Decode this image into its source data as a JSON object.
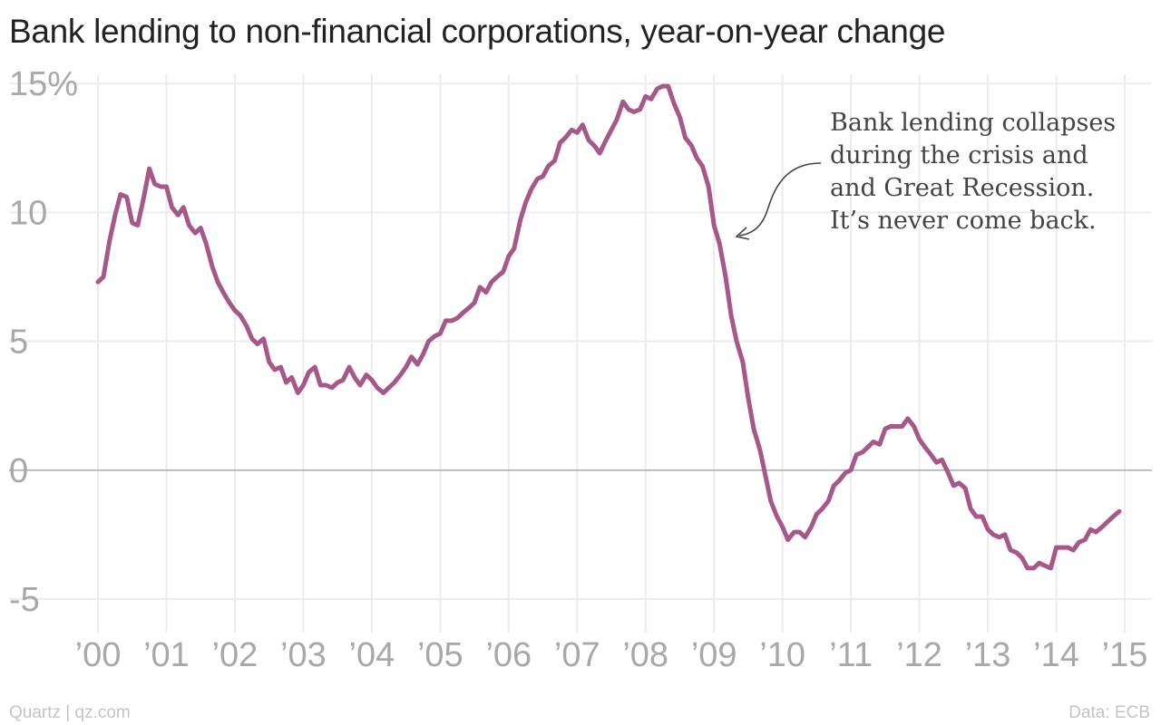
{
  "title": "Bank lending to non-financial corporations, year-on-year change",
  "footer": {
    "source_left": "Quartz | qz.com",
    "source_right": "Data: ECB"
  },
  "colors": {
    "line": "#A7588A",
    "grid": "#ececec",
    "zero_line": "#aaaaaa",
    "tick_text": "#a8a8a8"
  },
  "chart_data": {
    "type": "line",
    "title": "Bank lending to non-financial corporations, year-on-year change",
    "xlabel": "",
    "ylabel": "",
    "xlim": [
      2000,
      2015
    ],
    "ylim": [
      -6.3,
      15.5
    ],
    "yticks": [
      {
        "value": -5,
        "label": "-5"
      },
      {
        "value": 0,
        "label": "0"
      },
      {
        "value": 5,
        "label": "5"
      },
      {
        "value": 10,
        "label": "10"
      },
      {
        "value": 15,
        "label": "15%"
      }
    ],
    "xticks": [
      {
        "value": 2000,
        "label": "'00"
      },
      {
        "value": 2001,
        "label": "'01"
      },
      {
        "value": 2002,
        "label": "'02"
      },
      {
        "value": 2003,
        "label": "'03"
      },
      {
        "value": 2004,
        "label": "'04"
      },
      {
        "value": 2005,
        "label": "'05"
      },
      {
        "value": 2006,
        "label": "'06"
      },
      {
        "value": 2007,
        "label": "'07"
      },
      {
        "value": 2008,
        "label": "'08"
      },
      {
        "value": 2009,
        "label": "'09"
      },
      {
        "value": 2010,
        "label": "'10"
      },
      {
        "value": 2011,
        "label": "'11"
      },
      {
        "value": 2012,
        "label": "'12"
      },
      {
        "value": 2013,
        "label": "'13"
      },
      {
        "value": 2014,
        "label": "'14"
      },
      {
        "value": 2015,
        "label": "'15"
      }
    ],
    "grid": true,
    "annotation": {
      "lines": [
        "Bank lending collapses",
        "during the crisis and",
        "and Great Recession.",
        "It’s never come back."
      ],
      "points_to": {
        "x": 2009.2,
        "y": 9.5
      }
    },
    "series": [
      {
        "values": [
          [
            2000.0,
            7.3
          ],
          [
            2000.08,
            7.5
          ],
          [
            2000.17,
            8.9
          ],
          [
            2000.25,
            9.9
          ],
          [
            2000.33,
            10.7
          ],
          [
            2000.42,
            10.6
          ],
          [
            2000.5,
            9.6
          ],
          [
            2000.58,
            9.5
          ],
          [
            2000.67,
            10.6
          ],
          [
            2000.75,
            11.7
          ],
          [
            2000.83,
            11.1
          ],
          [
            2000.92,
            11.0
          ],
          [
            2001.0,
            11.0
          ],
          [
            2001.08,
            10.2
          ],
          [
            2001.17,
            9.9
          ],
          [
            2001.25,
            10.2
          ],
          [
            2001.33,
            9.5
          ],
          [
            2001.42,
            9.2
          ],
          [
            2001.5,
            9.4
          ],
          [
            2001.58,
            8.8
          ],
          [
            2001.67,
            7.9
          ],
          [
            2001.75,
            7.3
          ],
          [
            2001.83,
            6.9
          ],
          [
            2001.92,
            6.5
          ],
          [
            2002.0,
            6.2
          ],
          [
            2002.08,
            6.0
          ],
          [
            2002.17,
            5.6
          ],
          [
            2002.25,
            5.1
          ],
          [
            2002.33,
            4.9
          ],
          [
            2002.42,
            5.1
          ],
          [
            2002.5,
            4.2
          ],
          [
            2002.58,
            3.9
          ],
          [
            2002.67,
            4.0
          ],
          [
            2002.75,
            3.4
          ],
          [
            2002.83,
            3.6
          ],
          [
            2002.92,
            3.0
          ],
          [
            2003.0,
            3.3
          ],
          [
            2003.08,
            3.8
          ],
          [
            2003.17,
            4.0
          ],
          [
            2003.25,
            3.3
          ],
          [
            2003.33,
            3.3
          ],
          [
            2003.42,
            3.2
          ],
          [
            2003.5,
            3.4
          ],
          [
            2003.58,
            3.5
          ],
          [
            2003.67,
            4.0
          ],
          [
            2003.75,
            3.6
          ],
          [
            2003.83,
            3.3
          ],
          [
            2003.92,
            3.7
          ],
          [
            2004.0,
            3.5
          ],
          [
            2004.08,
            3.2
          ],
          [
            2004.17,
            3.0
          ],
          [
            2004.25,
            3.2
          ],
          [
            2004.33,
            3.4
          ],
          [
            2004.42,
            3.7
          ],
          [
            2004.5,
            4.0
          ],
          [
            2004.58,
            4.4
          ],
          [
            2004.67,
            4.1
          ],
          [
            2004.75,
            4.5
          ],
          [
            2004.83,
            5.0
          ],
          [
            2004.92,
            5.2
          ],
          [
            2005.0,
            5.3
          ],
          [
            2005.08,
            5.8
          ],
          [
            2005.17,
            5.8
          ],
          [
            2005.25,
            5.9
          ],
          [
            2005.33,
            6.1
          ],
          [
            2005.42,
            6.3
          ],
          [
            2005.5,
            6.5
          ],
          [
            2005.58,
            7.1
          ],
          [
            2005.67,
            6.9
          ],
          [
            2005.75,
            7.3
          ],
          [
            2005.83,
            7.5
          ],
          [
            2005.92,
            7.7
          ],
          [
            2006.0,
            8.3
          ],
          [
            2006.08,
            8.6
          ],
          [
            2006.17,
            9.7
          ],
          [
            2006.25,
            10.4
          ],
          [
            2006.33,
            10.9
          ],
          [
            2006.42,
            11.3
          ],
          [
            2006.5,
            11.4
          ],
          [
            2006.58,
            11.8
          ],
          [
            2006.67,
            12.0
          ],
          [
            2006.75,
            12.7
          ],
          [
            2006.83,
            12.9
          ],
          [
            2006.92,
            13.2
          ],
          [
            2007.0,
            13.1
          ],
          [
            2007.08,
            13.4
          ],
          [
            2007.17,
            12.8
          ],
          [
            2007.25,
            12.6
          ],
          [
            2007.33,
            12.3
          ],
          [
            2007.42,
            12.8
          ],
          [
            2007.5,
            13.2
          ],
          [
            2007.58,
            13.6
          ],
          [
            2007.67,
            14.3
          ],
          [
            2007.75,
            14.0
          ],
          [
            2007.83,
            13.9
          ],
          [
            2007.92,
            14.0
          ],
          [
            2008.0,
            14.5
          ],
          [
            2008.08,
            14.4
          ],
          [
            2008.17,
            14.8
          ],
          [
            2008.25,
            14.9
          ],
          [
            2008.33,
            14.9
          ],
          [
            2008.42,
            14.2
          ],
          [
            2008.5,
            13.7
          ],
          [
            2008.58,
            12.9
          ],
          [
            2008.67,
            12.6
          ],
          [
            2008.75,
            12.1
          ],
          [
            2008.83,
            11.8
          ],
          [
            2008.92,
            11.0
          ],
          [
            2009.0,
            9.5
          ],
          [
            2009.08,
            8.8
          ],
          [
            2009.17,
            7.5
          ],
          [
            2009.25,
            6.0
          ],
          [
            2009.33,
            5.0
          ],
          [
            2009.42,
            4.2
          ],
          [
            2009.5,
            2.8
          ],
          [
            2009.58,
            1.6
          ],
          [
            2009.67,
            0.8
          ],
          [
            2009.75,
            -0.2
          ],
          [
            2009.83,
            -1.2
          ],
          [
            2009.92,
            -1.8
          ],
          [
            2010.0,
            -2.2
          ],
          [
            2010.08,
            -2.7
          ],
          [
            2010.17,
            -2.4
          ],
          [
            2010.25,
            -2.4
          ],
          [
            2010.33,
            -2.6
          ],
          [
            2010.42,
            -2.2
          ],
          [
            2010.5,
            -1.7
          ],
          [
            2010.58,
            -1.5
          ],
          [
            2010.67,
            -1.2
          ],
          [
            2010.75,
            -0.6
          ],
          [
            2010.83,
            -0.4
          ],
          [
            2010.92,
            -0.1
          ],
          [
            2011.0,
            0.0
          ],
          [
            2011.08,
            0.6
          ],
          [
            2011.17,
            0.7
          ],
          [
            2011.25,
            0.9
          ],
          [
            2011.33,
            1.1
          ],
          [
            2011.42,
            1.0
          ],
          [
            2011.5,
            1.6
          ],
          [
            2011.58,
            1.7
          ],
          [
            2011.67,
            1.7
          ],
          [
            2011.75,
            1.7
          ],
          [
            2011.83,
            2.0
          ],
          [
            2011.92,
            1.7
          ],
          [
            2012.0,
            1.2
          ],
          [
            2012.08,
            0.9
          ],
          [
            2012.17,
            0.6
          ],
          [
            2012.25,
            0.3
          ],
          [
            2012.33,
            0.4
          ],
          [
            2012.42,
            -0.1
          ],
          [
            2012.5,
            -0.6
          ],
          [
            2012.58,
            -0.5
          ],
          [
            2012.67,
            -0.7
          ],
          [
            2012.75,
            -1.5
          ],
          [
            2012.83,
            -1.8
          ],
          [
            2012.92,
            -1.8
          ],
          [
            2013.0,
            -2.3
          ],
          [
            2013.08,
            -2.5
          ],
          [
            2013.17,
            -2.6
          ],
          [
            2013.25,
            -2.5
          ],
          [
            2013.33,
            -3.1
          ],
          [
            2013.42,
            -3.2
          ],
          [
            2013.5,
            -3.4
          ],
          [
            2013.58,
            -3.8
          ],
          [
            2013.67,
            -3.8
          ],
          [
            2013.75,
            -3.6
          ],
          [
            2013.83,
            -3.7
          ],
          [
            2013.92,
            -3.8
          ],
          [
            2014.0,
            -3.0
          ],
          [
            2014.08,
            -3.0
          ],
          [
            2014.17,
            -3.0
          ],
          [
            2014.25,
            -3.1
          ],
          [
            2014.33,
            -2.8
          ],
          [
            2014.42,
            -2.7
          ],
          [
            2014.5,
            -2.3
          ],
          [
            2014.58,
            -2.4
          ],
          [
            2014.67,
            -2.2
          ],
          [
            2014.75,
            -2.0
          ],
          [
            2014.83,
            -1.8
          ],
          [
            2014.92,
            -1.6
          ]
        ]
      }
    ]
  }
}
